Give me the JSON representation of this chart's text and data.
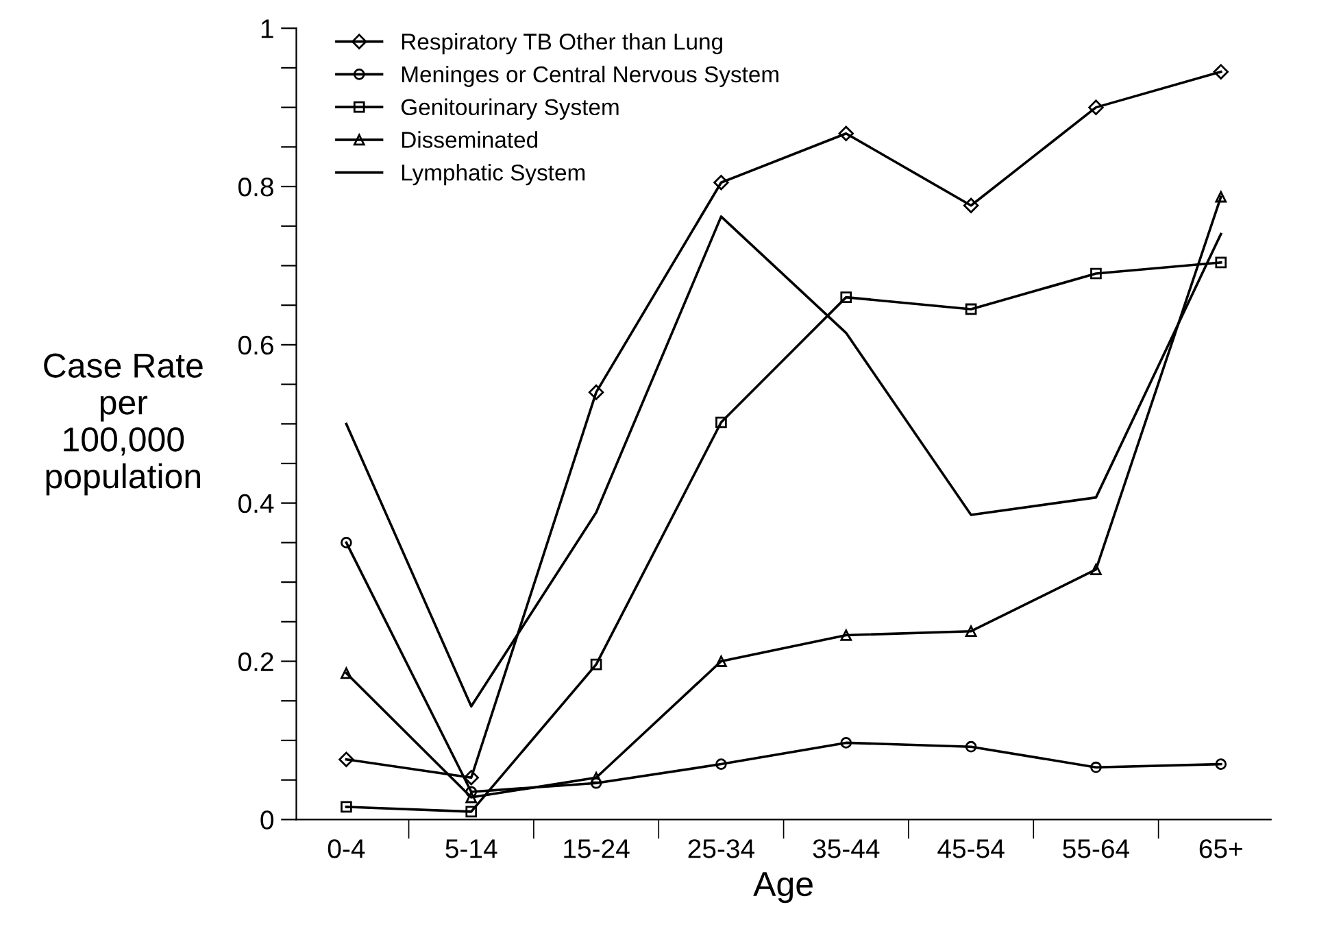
{
  "chart_data": {
    "type": "line",
    "xlabel": "Age",
    "ylabel": "Case Rate\nper\n100,000\npopulation",
    "categories": [
      "0-4",
      "5-14",
      "15-24",
      "25-34",
      "35-44",
      "45-54",
      "55-64",
      "65+"
    ],
    "ylim": [
      0,
      1
    ],
    "yticks": [
      0,
      {
        "value": 0.05,
        "label": null
      },
      {
        "value": 0.1,
        "label": null
      },
      {
        "value": 0.15,
        "label": null
      },
      0.2,
      {
        "value": 0.25,
        "label": null
      },
      {
        "value": 0.3,
        "label": null
      },
      {
        "value": 0.35,
        "label": null
      },
      0.4,
      {
        "value": 0.45,
        "label": null
      },
      {
        "value": 0.5,
        "label": null
      },
      {
        "value": 0.55,
        "label": null
      },
      0.6,
      {
        "value": 0.65,
        "label": null
      },
      {
        "value": 0.7,
        "label": null
      },
      {
        "value": 0.75,
        "label": null
      },
      0.8,
      {
        "value": 0.85,
        "label": null
      },
      {
        "value": 0.9,
        "label": null
      },
      {
        "value": 0.95,
        "label": null
      },
      1
    ],
    "grid": false,
    "legend": "top left",
    "line_style": "solid",
    "series": [
      {
        "name": "Respiratory TB Other than Lung",
        "color": "#000000",
        "marker": "diamond",
        "values": [
          0.076,
          0.053,
          0.54,
          0.805,
          0.867,
          0.776,
          0.9,
          0.945
        ]
      },
      {
        "name": "Meninges or Central Nervous System",
        "color": "#000000",
        "marker": "circle",
        "values": [
          0.35,
          0.035,
          0.046,
          0.07,
          0.097,
          0.092,
          0.066,
          0.07
        ]
      },
      {
        "name": "Genitourinary System",
        "color": "#000000",
        "marker": "square",
        "values": [
          0.016,
          0.01,
          0.196,
          0.502,
          0.66,
          0.645,
          0.69,
          0.704
        ]
      },
      {
        "name": "Disseminated",
        "color": "#000000",
        "marker": "triangle",
        "values": [
          0.185,
          0.028,
          0.053,
          0.2,
          0.233,
          0.238,
          0.316,
          0.787
        ]
      },
      {
        "name": "Lymphatic System",
        "color": "#000000",
        "marker": "none",
        "values": [
          0.5,
          0.143,
          0.388,
          0.762,
          0.615,
          0.385,
          0.407,
          0.74
        ]
      }
    ]
  }
}
